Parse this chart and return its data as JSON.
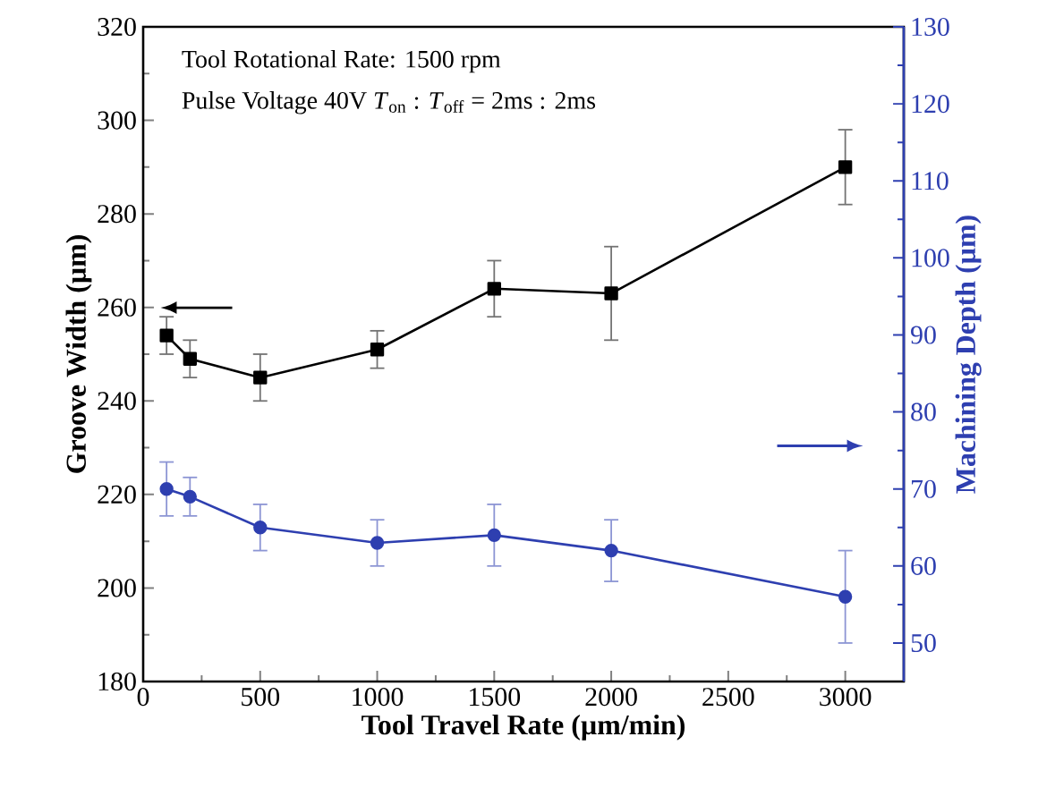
{
  "chart_data": {
    "type": "line",
    "xlabel": "Tool Travel Rate (µm/min)",
    "ylabel": "Groove Width (µm)",
    "y2label": "Machining Depth (µm)",
    "annotations": [
      "Tool Rotational Rate: 1500 rpm",
      "Pulse Voltage 40V   *T*$_{on}$ : *T*$_{off}$ = 2ms : 2ms"
    ],
    "x": [
      100,
      200,
      500,
      1000,
      1500,
      2000,
      3000
    ],
    "xlim": [
      0,
      3250
    ],
    "xticks": [
      0,
      500,
      1000,
      1500,
      2000,
      2500,
      3000
    ],
    "ylim": [
      180,
      320
    ],
    "yticks": [
      180,
      200,
      220,
      240,
      260,
      280,
      300,
      320
    ],
    "y2lim": [
      45,
      130
    ],
    "y2ticks": [
      50,
      60,
      70,
      80,
      90,
      100,
      110,
      120,
      130
    ],
    "series": [
      {
        "color": "#000000",
        "marker": "square",
        "values": [
          254,
          249,
          245,
          251,
          264,
          263,
          290
        ],
        "errors": [
          4,
          4,
          5,
          4,
          6,
          10,
          8
        ]
      },
      {
        "color": "#2e3fb0",
        "marker": "circle",
        "axis": "y2",
        "values": [
          70,
          69,
          65,
          63,
          64,
          62,
          56
        ],
        "errors": [
          3.5,
          2.5,
          3,
          3,
          4,
          4,
          6
        ]
      }
    ]
  }
}
